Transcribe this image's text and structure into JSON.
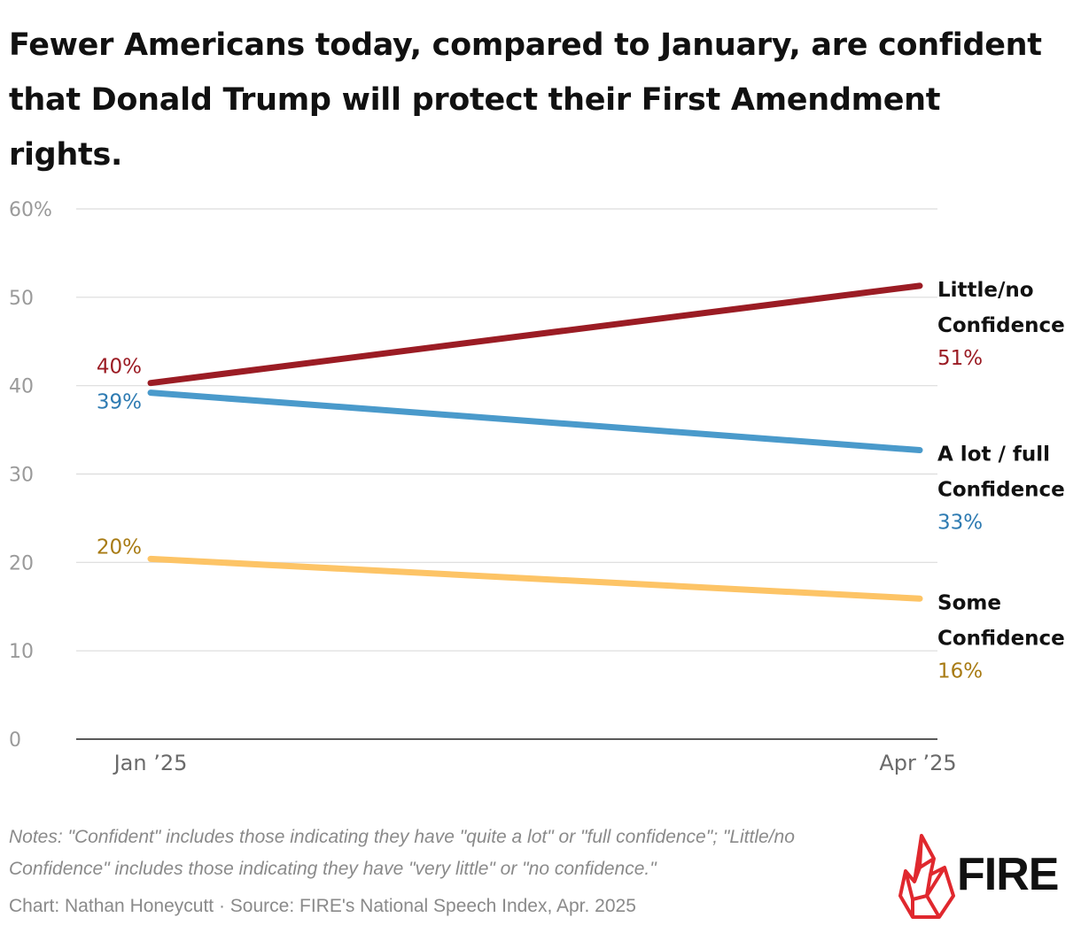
{
  "title": "Fewer Americans today, compared to January, are confident that Donald Trump will protect their First Amendment rights.",
  "chart_data": {
    "type": "line",
    "title": "Fewer Americans today, compared to January, are confident that Donald Trump will protect their First Amendment rights.",
    "x": [
      "Jan ’25",
      "Apr ’25"
    ],
    "ylim": [
      0,
      60
    ],
    "yticks": [
      0,
      10,
      20,
      30,
      40,
      50,
      60
    ],
    "ytick_labels": [
      "0",
      "10",
      "20",
      "30",
      "40",
      "50",
      "60%"
    ],
    "grid": true,
    "series": [
      {
        "name": "Little/no Confidence",
        "name_lines": [
          "Little/no",
          "Confidence"
        ],
        "values": [
          40.3,
          51.3
        ],
        "labels": [
          "40%",
          "51%"
        ],
        "color": "#9b1c24",
        "label_color": "#9b1c24"
      },
      {
        "name": "A lot / full Confidence",
        "name_lines": [
          "A lot / full",
          "Confidence"
        ],
        "values": [
          39.2,
          32.7
        ],
        "labels": [
          "39%",
          "33%"
        ],
        "color": "#4a9acb",
        "label_color": "#2e7bb2"
      },
      {
        "name": "Some Confidence",
        "name_lines": [
          "Some",
          "Confidence"
        ],
        "values": [
          20.4,
          15.9
        ],
        "labels": [
          "20%",
          "16%"
        ],
        "color": "#fdc466",
        "label_color": "#a87b14"
      }
    ]
  },
  "notes": "Notes: \"Confident\" includes those indicating they have \"quite a lot\" or \"full confidence\"; \"Little/no Confidence\" includes those indicating they have \"very little\" or \"no confidence.\"",
  "credit": "Chart: Nathan Honeycutt · Source: FIRE's National Speech Index, Apr. 2025",
  "logo": {
    "text": "FIRE",
    "icon": "flame-icon",
    "color": "#e0282e"
  }
}
